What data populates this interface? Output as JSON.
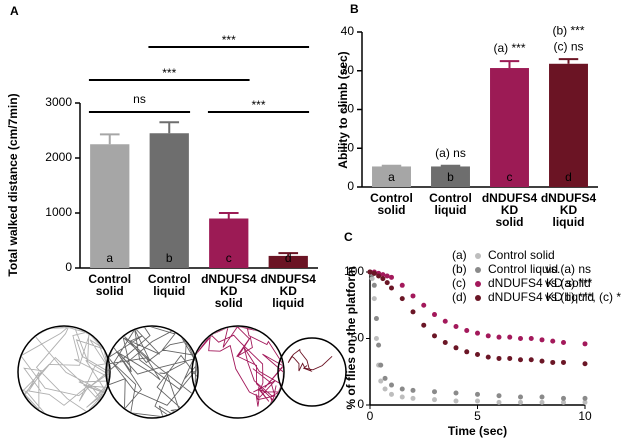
{
  "chart_data": [
    {
      "type": "bar",
      "panel": "A",
      "ylabel": "Total walked distance (cm/7min)",
      "categories": [
        [
          "Control",
          "solid"
        ],
        [
          "Control",
          "liquid"
        ],
        [
          "dNDUFS4",
          "KD",
          "solid"
        ],
        [
          "dNDUFS4",
          "KD",
          "liquid"
        ]
      ],
      "bar_labels": [
        "a",
        "b",
        "c",
        "d"
      ],
      "values": [
        2250,
        2450,
        900,
        220
      ],
      "errors": [
        180,
        200,
        100,
        50
      ],
      "colors": [
        "#a6a6a6",
        "#6e6e6e",
        "#9c1b55",
        "#6b1424"
      ],
      "ylim": [
        0,
        3000
      ],
      "yticks": [
        0,
        1000,
        2000,
        3000
      ],
      "brackets": [
        {
          "label": "ns",
          "between": [
            "a",
            "b"
          ]
        },
        {
          "label": "***",
          "between": [
            "a",
            "c"
          ]
        },
        {
          "label": "***",
          "between": [
            "b",
            "d"
          ]
        },
        {
          "label": "***",
          "between": [
            "c",
            "d"
          ]
        }
      ]
    },
    {
      "type": "bar",
      "panel": "B",
      "ylabel": "Ability to climb (sec)",
      "categories": [
        [
          "Control",
          "solid"
        ],
        [
          "Control",
          "liquid"
        ],
        [
          "dNDUFS4",
          "KD",
          "solid"
        ],
        [
          "dNDUFS4",
          "KD",
          "liquid"
        ]
      ],
      "bar_labels": [
        "a",
        "b",
        "c",
        "d"
      ],
      "values": [
        5.3,
        5.3,
        30.7,
        31.8
      ],
      "errors": [
        0.2,
        0.2,
        1.8,
        1.2
      ],
      "colors": [
        "#a6a6a6",
        "#6e6e6e",
        "#9c1b55",
        "#6b1424"
      ],
      "ylim": [
        0,
        40
      ],
      "yticks": [
        0,
        10,
        20,
        30,
        40
      ],
      "notes": [
        [],
        [
          "(a) ns"
        ],
        [
          "(a) ***"
        ],
        [
          "(b) ***",
          "(c) ns"
        ]
      ]
    },
    {
      "type": "scatter",
      "panel": "C",
      "xlabel": "Time (sec)",
      "ylabel": "% of flies on the platform",
      "xlim": [
        0,
        10
      ],
      "ylim": [
        0,
        100
      ],
      "xticks": [
        0,
        5,
        10
      ],
      "yticks": [
        0,
        50,
        100
      ],
      "series": [
        {
          "label": "(a)",
          "name": "Control solid",
          "note": null,
          "color": "#bdbdbd",
          "x": [
            0,
            0.1,
            0.2,
            0.3,
            0.4,
            0.5,
            0.7,
            1,
            1.5,
            2,
            3,
            4,
            5,
            6,
            7,
            8,
            9,
            10
          ],
          "values": [
            100,
            95,
            80,
            50,
            30,
            18,
            12,
            8,
            6,
            5,
            4,
            3,
            3,
            2,
            2,
            2,
            2,
            2
          ]
        },
        {
          "label": "(b)",
          "name": "Control liquid",
          "note": "vs.(a) ns",
          "color": "#8a8a8a",
          "x": [
            0,
            0.1,
            0.2,
            0.3,
            0.4,
            0.5,
            0.7,
            1,
            1.5,
            2,
            3,
            4,
            5,
            6,
            7,
            8,
            9,
            10
          ],
          "values": [
            100,
            98,
            90,
            65,
            45,
            30,
            20,
            15,
            12,
            11,
            10,
            9,
            8,
            7,
            6,
            6,
            5,
            5
          ]
        },
        {
          "label": "(c)",
          "name": "dNDUFS4 KD solid",
          "note": "vs.(a) ***",
          "color": "#a3195b",
          "x": [
            0,
            0.2,
            0.4,
            0.6,
            0.8,
            1,
            1.5,
            2,
            2.5,
            3,
            3.5,
            4,
            4.5,
            5,
            5.5,
            6,
            6.5,
            7,
            7.5,
            8,
            8.5,
            9,
            10
          ],
          "values": [
            100,
            100,
            99,
            98,
            97,
            96,
            90,
            82,
            75,
            68,
            63,
            59,
            56,
            54,
            52,
            51,
            51,
            50,
            50,
            49,
            48,
            47,
            46
          ]
        },
        {
          "label": "(d)",
          "name": "dNDUFS4 KD liquid",
          "note": "vs.(b) ***, (c) *",
          "color": "#6b1626",
          "x": [
            0,
            0.2,
            0.4,
            0.6,
            0.8,
            1,
            1.5,
            2,
            2.5,
            3,
            3.5,
            4,
            4.5,
            5,
            5.5,
            6,
            6.5,
            7,
            7.5,
            8,
            8.5,
            9,
            10
          ],
          "values": [
            100,
            99,
            97,
            95,
            92,
            88,
            80,
            70,
            60,
            52,
            47,
            43,
            40,
            38,
            36,
            35,
            35,
            34,
            34,
            33,
            32,
            32,
            31
          ]
        }
      ]
    }
  ]
}
